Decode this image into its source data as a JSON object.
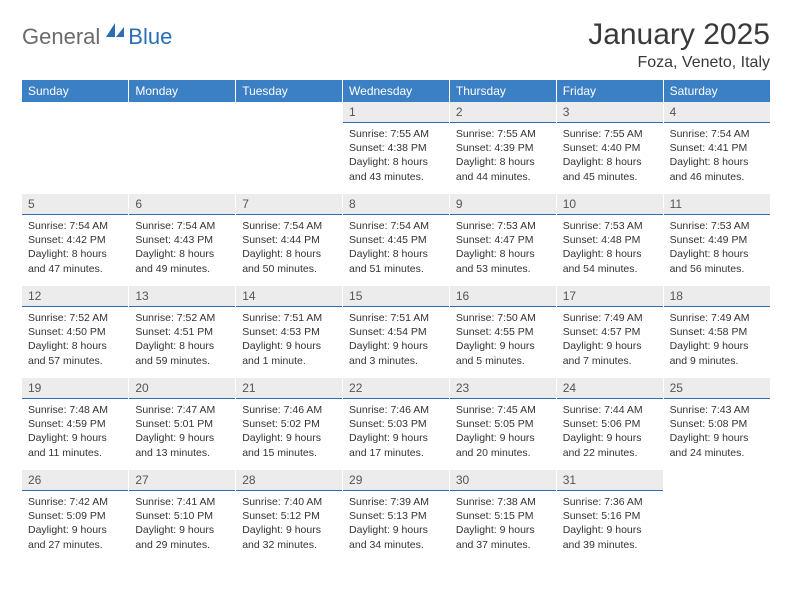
{
  "brand": {
    "text_general": "General",
    "text_blue": "Blue"
  },
  "header": {
    "month_title": "January 2025",
    "location": "Foza, Veneto, Italy"
  },
  "colors": {
    "header_bg": "#3b7fc4",
    "header_text": "#ffffff",
    "daynum_bg": "#ececec",
    "daynum_border": "#2a6fb5",
    "body_text": "#333333",
    "logo_gray": "#6b6b6b",
    "logo_blue": "#2a6fb5"
  },
  "weekdays": [
    "Sunday",
    "Monday",
    "Tuesday",
    "Wednesday",
    "Thursday",
    "Friday",
    "Saturday"
  ],
  "weeks": [
    [
      {
        "day": "",
        "sunrise": "",
        "sunset": "",
        "daylight1": "",
        "daylight2": ""
      },
      {
        "day": "",
        "sunrise": "",
        "sunset": "",
        "daylight1": "",
        "daylight2": ""
      },
      {
        "day": "",
        "sunrise": "",
        "sunset": "",
        "daylight1": "",
        "daylight2": ""
      },
      {
        "day": "1",
        "sunrise": "Sunrise: 7:55 AM",
        "sunset": "Sunset: 4:38 PM",
        "daylight1": "Daylight: 8 hours",
        "daylight2": "and 43 minutes."
      },
      {
        "day": "2",
        "sunrise": "Sunrise: 7:55 AM",
        "sunset": "Sunset: 4:39 PM",
        "daylight1": "Daylight: 8 hours",
        "daylight2": "and 44 minutes."
      },
      {
        "day": "3",
        "sunrise": "Sunrise: 7:55 AM",
        "sunset": "Sunset: 4:40 PM",
        "daylight1": "Daylight: 8 hours",
        "daylight2": "and 45 minutes."
      },
      {
        "day": "4",
        "sunrise": "Sunrise: 7:54 AM",
        "sunset": "Sunset: 4:41 PM",
        "daylight1": "Daylight: 8 hours",
        "daylight2": "and 46 minutes."
      }
    ],
    [
      {
        "day": "5",
        "sunrise": "Sunrise: 7:54 AM",
        "sunset": "Sunset: 4:42 PM",
        "daylight1": "Daylight: 8 hours",
        "daylight2": "and 47 minutes."
      },
      {
        "day": "6",
        "sunrise": "Sunrise: 7:54 AM",
        "sunset": "Sunset: 4:43 PM",
        "daylight1": "Daylight: 8 hours",
        "daylight2": "and 49 minutes."
      },
      {
        "day": "7",
        "sunrise": "Sunrise: 7:54 AM",
        "sunset": "Sunset: 4:44 PM",
        "daylight1": "Daylight: 8 hours",
        "daylight2": "and 50 minutes."
      },
      {
        "day": "8",
        "sunrise": "Sunrise: 7:54 AM",
        "sunset": "Sunset: 4:45 PM",
        "daylight1": "Daylight: 8 hours",
        "daylight2": "and 51 minutes."
      },
      {
        "day": "9",
        "sunrise": "Sunrise: 7:53 AM",
        "sunset": "Sunset: 4:47 PM",
        "daylight1": "Daylight: 8 hours",
        "daylight2": "and 53 minutes."
      },
      {
        "day": "10",
        "sunrise": "Sunrise: 7:53 AM",
        "sunset": "Sunset: 4:48 PM",
        "daylight1": "Daylight: 8 hours",
        "daylight2": "and 54 minutes."
      },
      {
        "day": "11",
        "sunrise": "Sunrise: 7:53 AM",
        "sunset": "Sunset: 4:49 PM",
        "daylight1": "Daylight: 8 hours",
        "daylight2": "and 56 minutes."
      }
    ],
    [
      {
        "day": "12",
        "sunrise": "Sunrise: 7:52 AM",
        "sunset": "Sunset: 4:50 PM",
        "daylight1": "Daylight: 8 hours",
        "daylight2": "and 57 minutes."
      },
      {
        "day": "13",
        "sunrise": "Sunrise: 7:52 AM",
        "sunset": "Sunset: 4:51 PM",
        "daylight1": "Daylight: 8 hours",
        "daylight2": "and 59 minutes."
      },
      {
        "day": "14",
        "sunrise": "Sunrise: 7:51 AM",
        "sunset": "Sunset: 4:53 PM",
        "daylight1": "Daylight: 9 hours",
        "daylight2": "and 1 minute."
      },
      {
        "day": "15",
        "sunrise": "Sunrise: 7:51 AM",
        "sunset": "Sunset: 4:54 PM",
        "daylight1": "Daylight: 9 hours",
        "daylight2": "and 3 minutes."
      },
      {
        "day": "16",
        "sunrise": "Sunrise: 7:50 AM",
        "sunset": "Sunset: 4:55 PM",
        "daylight1": "Daylight: 9 hours",
        "daylight2": "and 5 minutes."
      },
      {
        "day": "17",
        "sunrise": "Sunrise: 7:49 AM",
        "sunset": "Sunset: 4:57 PM",
        "daylight1": "Daylight: 9 hours",
        "daylight2": "and 7 minutes."
      },
      {
        "day": "18",
        "sunrise": "Sunrise: 7:49 AM",
        "sunset": "Sunset: 4:58 PM",
        "daylight1": "Daylight: 9 hours",
        "daylight2": "and 9 minutes."
      }
    ],
    [
      {
        "day": "19",
        "sunrise": "Sunrise: 7:48 AM",
        "sunset": "Sunset: 4:59 PM",
        "daylight1": "Daylight: 9 hours",
        "daylight2": "and 11 minutes."
      },
      {
        "day": "20",
        "sunrise": "Sunrise: 7:47 AM",
        "sunset": "Sunset: 5:01 PM",
        "daylight1": "Daylight: 9 hours",
        "daylight2": "and 13 minutes."
      },
      {
        "day": "21",
        "sunrise": "Sunrise: 7:46 AM",
        "sunset": "Sunset: 5:02 PM",
        "daylight1": "Daylight: 9 hours",
        "daylight2": "and 15 minutes."
      },
      {
        "day": "22",
        "sunrise": "Sunrise: 7:46 AM",
        "sunset": "Sunset: 5:03 PM",
        "daylight1": "Daylight: 9 hours",
        "daylight2": "and 17 minutes."
      },
      {
        "day": "23",
        "sunrise": "Sunrise: 7:45 AM",
        "sunset": "Sunset: 5:05 PM",
        "daylight1": "Daylight: 9 hours",
        "daylight2": "and 20 minutes."
      },
      {
        "day": "24",
        "sunrise": "Sunrise: 7:44 AM",
        "sunset": "Sunset: 5:06 PM",
        "daylight1": "Daylight: 9 hours",
        "daylight2": "and 22 minutes."
      },
      {
        "day": "25",
        "sunrise": "Sunrise: 7:43 AM",
        "sunset": "Sunset: 5:08 PM",
        "daylight1": "Daylight: 9 hours",
        "daylight2": "and 24 minutes."
      }
    ],
    [
      {
        "day": "26",
        "sunrise": "Sunrise: 7:42 AM",
        "sunset": "Sunset: 5:09 PM",
        "daylight1": "Daylight: 9 hours",
        "daylight2": "and 27 minutes."
      },
      {
        "day": "27",
        "sunrise": "Sunrise: 7:41 AM",
        "sunset": "Sunset: 5:10 PM",
        "daylight1": "Daylight: 9 hours",
        "daylight2": "and 29 minutes."
      },
      {
        "day": "28",
        "sunrise": "Sunrise: 7:40 AM",
        "sunset": "Sunset: 5:12 PM",
        "daylight1": "Daylight: 9 hours",
        "daylight2": "and 32 minutes."
      },
      {
        "day": "29",
        "sunrise": "Sunrise: 7:39 AM",
        "sunset": "Sunset: 5:13 PM",
        "daylight1": "Daylight: 9 hours",
        "daylight2": "and 34 minutes."
      },
      {
        "day": "30",
        "sunrise": "Sunrise: 7:38 AM",
        "sunset": "Sunset: 5:15 PM",
        "daylight1": "Daylight: 9 hours",
        "daylight2": "and 37 minutes."
      },
      {
        "day": "31",
        "sunrise": "Sunrise: 7:36 AM",
        "sunset": "Sunset: 5:16 PM",
        "daylight1": "Daylight: 9 hours",
        "daylight2": "and 39 minutes."
      },
      {
        "day": "",
        "sunrise": "",
        "sunset": "",
        "daylight1": "",
        "daylight2": ""
      }
    ]
  ]
}
